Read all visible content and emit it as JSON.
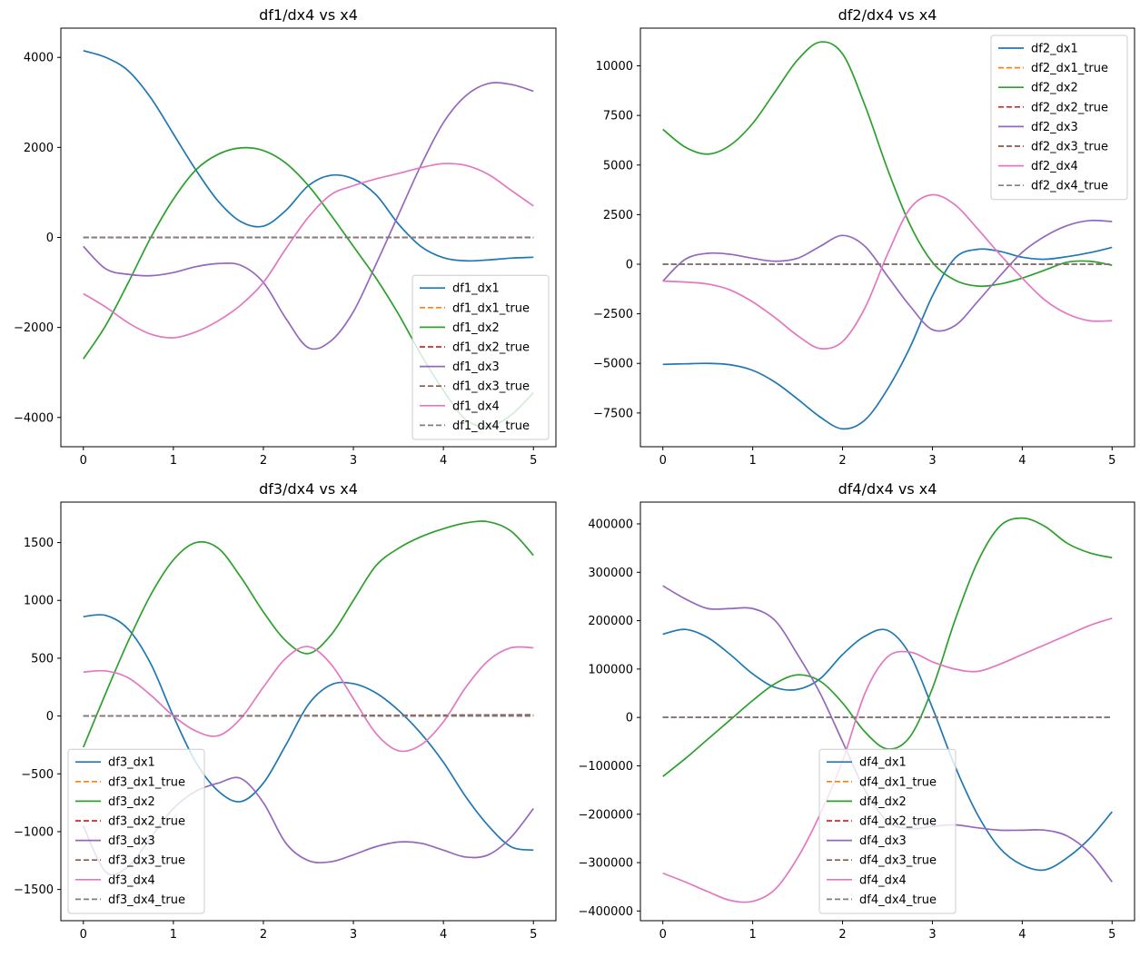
{
  "colors": {
    "c1": "#1f77b4",
    "c2": "#ff7f0e",
    "c3": "#2ca02c",
    "c4": "#d62728",
    "c5": "#9467bd",
    "c6": "#8c564b",
    "c7": "#e377c2",
    "c8": "#7f7f7f"
  },
  "chart_data": [
    {
      "type": "line",
      "title": "df1/dx4 vs x4",
      "xlim": [
        -0.25,
        5.25
      ],
      "ylim": [
        -4650,
        4650
      ],
      "xticks": [
        0,
        1,
        2,
        3,
        4,
        5
      ],
      "yticks": [
        -4000,
        -2000,
        0,
        2000,
        4000
      ],
      "legend_position": "lower right",
      "x": [
        0,
        0.25,
        0.5,
        0.75,
        1,
        1.25,
        1.5,
        1.75,
        2,
        2.25,
        2.5,
        2.75,
        3,
        3.25,
        3.5,
        3.75,
        4,
        4.25,
        4.5,
        4.75,
        5
      ],
      "series": [
        {
          "name": "df1_dx1",
          "color": "c1",
          "dash": false,
          "values": [
            4150,
            4000,
            3700,
            3100,
            2300,
            1500,
            800,
            350,
            250,
            600,
            1150,
            1380,
            1300,
            950,
            300,
            -200,
            -450,
            -520,
            -500,
            -460,
            -440
          ]
        },
        {
          "name": "df1_dx1_true",
          "color": "c2",
          "dash": true,
          "values": [
            0,
            0,
            0,
            0,
            0,
            0,
            0,
            0,
            0,
            0,
            0,
            0,
            0,
            0,
            0,
            0,
            0,
            0,
            0,
            0,
            0
          ]
        },
        {
          "name": "df1_dx2",
          "color": "c3",
          "dash": false,
          "values": [
            -2700,
            -1950,
            -1000,
            0,
            850,
            1500,
            1850,
            1990,
            1930,
            1650,
            1150,
            500,
            -200,
            -900,
            -1700,
            -2600,
            -3400,
            -4050,
            -4200,
            -3950,
            -3450
          ]
        },
        {
          "name": "df1_dx2_true",
          "color": "c4",
          "dash": true,
          "values": [
            0,
            0,
            0,
            0,
            0,
            0,
            0,
            0,
            0,
            0,
            0,
            0,
            0,
            0,
            0,
            0,
            0,
            0,
            0,
            0,
            0
          ]
        },
        {
          "name": "df1_dx3",
          "color": "c5",
          "dash": false,
          "values": [
            -200,
            -700,
            -820,
            -850,
            -780,
            -650,
            -580,
            -620,
            -1000,
            -1800,
            -2450,
            -2300,
            -1650,
            -600,
            500,
            1600,
            2550,
            3150,
            3420,
            3400,
            3250
          ]
        },
        {
          "name": "df1_dx3_true",
          "color": "c6",
          "dash": true,
          "values": [
            0,
            0,
            0,
            0,
            0,
            0,
            0,
            0,
            0,
            0,
            0,
            0,
            0,
            0,
            0,
            0,
            0,
            0,
            0,
            0,
            0
          ]
        },
        {
          "name": "df1_dx4",
          "color": "c7",
          "dash": false,
          "values": [
            -1250,
            -1550,
            -1900,
            -2150,
            -2230,
            -2100,
            -1850,
            -1500,
            -1000,
            -250,
            450,
            950,
            1150,
            1300,
            1420,
            1550,
            1640,
            1600,
            1400,
            1050,
            700
          ]
        },
        {
          "name": "df1_dx4_true",
          "color": "c8",
          "dash": true,
          "values": [
            0,
            0,
            0,
            0,
            0,
            0,
            0,
            0,
            0,
            0,
            0,
            0,
            0,
            0,
            0,
            0,
            0,
            0,
            0,
            0,
            0
          ]
        }
      ]
    },
    {
      "type": "line",
      "title": "df2/dx4 vs x4",
      "xlim": [
        -0.25,
        5.25
      ],
      "ylim": [
        -9200,
        11900
      ],
      "xticks": [
        0,
        1,
        2,
        3,
        4,
        5
      ],
      "yticks": [
        -7500,
        -5000,
        -2500,
        0,
        2500,
        5000,
        7500,
        10000
      ],
      "legend_position": "upper right",
      "x": [
        0,
        0.25,
        0.5,
        0.75,
        1,
        1.25,
        1.5,
        1.75,
        2,
        2.25,
        2.5,
        2.75,
        3,
        3.25,
        3.5,
        3.75,
        4,
        4.25,
        4.5,
        4.75,
        5
      ],
      "series": [
        {
          "name": "df2_dx1",
          "color": "c1",
          "dash": false,
          "values": [
            -5050,
            -5020,
            -5000,
            -5070,
            -5350,
            -5950,
            -6800,
            -7700,
            -8300,
            -7850,
            -6300,
            -4200,
            -1600,
            300,
            750,
            650,
            350,
            250,
            380,
            580,
            850
          ]
        },
        {
          "name": "df2_dx1_true",
          "color": "c2",
          "dash": true,
          "values": [
            0,
            0,
            0,
            0,
            0,
            0,
            0,
            0,
            0,
            0,
            0,
            0,
            0,
            0,
            0,
            0,
            0,
            0,
            0,
            0,
            0
          ]
        },
        {
          "name": "df2_dx2",
          "color": "c3",
          "dash": false,
          "values": [
            6800,
            5900,
            5550,
            6000,
            7100,
            8700,
            10300,
            11200,
            10600,
            8000,
            4800,
            2000,
            100,
            -800,
            -1100,
            -1000,
            -700,
            -300,
            100,
            150,
            -50
          ]
        },
        {
          "name": "df2_dx2_true",
          "color": "c4",
          "dash": true,
          "values": [
            0,
            0,
            0,
            0,
            0,
            0,
            0,
            0,
            0,
            0,
            0,
            0,
            0,
            0,
            0,
            0,
            0,
            0,
            0,
            0,
            0
          ]
        },
        {
          "name": "df2_dx3",
          "color": "c5",
          "dash": false,
          "values": [
            -850,
            250,
            550,
            500,
            300,
            150,
            300,
            900,
            1450,
            900,
            -600,
            -2100,
            -3300,
            -3100,
            -1900,
            -600,
            600,
            1400,
            1950,
            2200,
            2150
          ]
        },
        {
          "name": "df2_dx3_true",
          "color": "c6",
          "dash": true,
          "values": [
            0,
            0,
            0,
            0,
            0,
            0,
            0,
            0,
            0,
            0,
            0,
            0,
            0,
            0,
            0,
            0,
            0,
            0,
            0,
            0,
            0
          ]
        },
        {
          "name": "df2_dx4",
          "color": "c7",
          "dash": false,
          "values": [
            -850,
            -900,
            -1000,
            -1300,
            -1900,
            -2700,
            -3600,
            -4250,
            -3900,
            -2200,
            500,
            2800,
            3500,
            3000,
            1800,
            500,
            -700,
            -1800,
            -2500,
            -2850,
            -2850
          ]
        },
        {
          "name": "df2_dx4_true",
          "color": "c8",
          "dash": true,
          "values": [
            0,
            0,
            0,
            0,
            0,
            0,
            0,
            0,
            0,
            0,
            0,
            0,
            0,
            0,
            0,
            0,
            0,
            0,
            0,
            0,
            0
          ]
        }
      ]
    },
    {
      "type": "line",
      "title": "df3/dx4 vs x4",
      "xlim": [
        -0.25,
        5.25
      ],
      "ylim": [
        -1770,
        1850
      ],
      "xticks": [
        0,
        1,
        2,
        3,
        4,
        5
      ],
      "yticks": [
        -1500,
        -1000,
        -500,
        0,
        500,
        1000,
        1500
      ],
      "legend_position": "lower left",
      "x": [
        0,
        0.25,
        0.5,
        0.75,
        1,
        1.25,
        1.5,
        1.75,
        2,
        2.25,
        2.5,
        2.75,
        3,
        3.25,
        3.5,
        3.75,
        4,
        4.25,
        4.5,
        4.75,
        5
      ],
      "series": [
        {
          "name": "df3_dx1",
          "color": "c1",
          "dash": false,
          "values": [
            860,
            870,
            750,
            450,
            0,
            -400,
            -650,
            -740,
            -580,
            -250,
            100,
            270,
            280,
            200,
            50,
            -150,
            -400,
            -700,
            -950,
            -1130,
            -1160
          ]
        },
        {
          "name": "df3_dx1_true",
          "color": "c2",
          "dash": true,
          "values": [
            0,
            0,
            0,
            0,
            0,
            0,
            0,
            0,
            0,
            0,
            0,
            0,
            0,
            0,
            0,
            0,
            0,
            0,
            0,
            0,
            0
          ]
        },
        {
          "name": "df3_dx2",
          "color": "c3",
          "dash": false,
          "values": [
            -270,
            200,
            650,
            1050,
            1350,
            1500,
            1450,
            1200,
            900,
            650,
            540,
            700,
            1000,
            1300,
            1450,
            1550,
            1620,
            1670,
            1680,
            1600,
            1390
          ]
        },
        {
          "name": "df3_dx2_true",
          "color": "c4",
          "dash": true,
          "values": [
            0,
            0,
            0,
            1,
            1,
            2,
            2,
            3,
            3,
            4,
            4,
            5,
            5,
            6,
            6,
            7,
            7,
            8,
            8,
            9,
            9
          ]
        },
        {
          "name": "df3_dx3",
          "color": "c5",
          "dash": false,
          "values": [
            -950,
            -1350,
            -1300,
            -1050,
            -800,
            -650,
            -580,
            -540,
            -750,
            -1100,
            -1250,
            -1260,
            -1200,
            -1130,
            -1090,
            -1100,
            -1160,
            -1220,
            -1200,
            -1050,
            -800
          ]
        },
        {
          "name": "df3_dx3_true",
          "color": "c6",
          "dash": true,
          "values": [
            0,
            0,
            0,
            0,
            1,
            1,
            1,
            2,
            2,
            3,
            3,
            4,
            4,
            5,
            5,
            6,
            7,
            8,
            9,
            10,
            11
          ]
        },
        {
          "name": "df3_dx4",
          "color": "c7",
          "dash": false,
          "values": [
            380,
            390,
            330,
            180,
            0,
            -130,
            -170,
            -20,
            250,
            500,
            600,
            450,
            150,
            -150,
            -300,
            -250,
            -50,
            250,
            480,
            590,
            590
          ]
        },
        {
          "name": "df3_dx4_true",
          "color": "c8",
          "dash": true,
          "values": [
            0,
            0,
            0,
            0,
            0,
            0,
            0,
            0,
            0,
            0,
            0,
            0,
            0,
            0,
            0,
            0,
            0,
            0,
            0,
            0,
            0
          ]
        }
      ]
    },
    {
      "type": "line",
      "title": "df4/dx4 vs x4",
      "xlim": [
        -0.25,
        5.25
      ],
      "ylim": [
        -420000,
        445000
      ],
      "xticks": [
        0,
        1,
        2,
        3,
        4,
        5
      ],
      "yticks": [
        -400000,
        -300000,
        -200000,
        -100000,
        0,
        100000,
        200000,
        300000,
        400000
      ],
      "legend_position": "lower center",
      "x": [
        0,
        0.25,
        0.5,
        0.75,
        1,
        1.25,
        1.5,
        1.75,
        2,
        2.25,
        2.5,
        2.75,
        3,
        3.25,
        3.5,
        3.75,
        4,
        4.25,
        4.5,
        4.75,
        5
      ],
      "series": [
        {
          "name": "df4_dx1",
          "color": "c1",
          "dash": false,
          "values": [
            172000,
            182000,
            165000,
            130000,
            90000,
            62000,
            58000,
            80000,
            130000,
            168000,
            180000,
            130000,
            20000,
            -100000,
            -200000,
            -270000,
            -305000,
            -315000,
            -290000,
            -250000,
            -195000
          ]
        },
        {
          "name": "df4_dx1_true",
          "color": "c2",
          "dash": true,
          "values": [
            0,
            0,
            0,
            0,
            0,
            0,
            0,
            0,
            0,
            0,
            0,
            0,
            0,
            0,
            0,
            0,
            0,
            0,
            0,
            0,
            0
          ]
        },
        {
          "name": "df4_dx2",
          "color": "c3",
          "dash": false,
          "values": [
            -122000,
            -85000,
            -45000,
            -5000,
            35000,
            70000,
            88000,
            75000,
            30000,
            -30000,
            -65000,
            -40000,
            60000,
            200000,
            320000,
            395000,
            412000,
            395000,
            360000,
            340000,
            330000
          ]
        },
        {
          "name": "df4_dx2_true",
          "color": "c4",
          "dash": true,
          "values": [
            0,
            0,
            0,
            0,
            0,
            0,
            0,
            0,
            0,
            0,
            0,
            0,
            0,
            0,
            0,
            0,
            0,
            0,
            0,
            0,
            0
          ]
        },
        {
          "name": "df4_dx3",
          "color": "c5",
          "dash": false,
          "values": [
            272000,
            245000,
            225000,
            225000,
            225000,
            200000,
            130000,
            50000,
            -50000,
            -150000,
            -215000,
            -230000,
            -225000,
            -222000,
            -228000,
            -233000,
            -233000,
            -233000,
            -245000,
            -280000,
            -340000
          ]
        },
        {
          "name": "df4_dx3_true",
          "color": "c6",
          "dash": true,
          "values": [
            0,
            0,
            0,
            0,
            0,
            0,
            0,
            0,
            0,
            0,
            0,
            0,
            0,
            0,
            0,
            0,
            0,
            0,
            0,
            0,
            0
          ]
        },
        {
          "name": "df4_dx4",
          "color": "c7",
          "dash": false,
          "values": [
            -322000,
            -340000,
            -360000,
            -378000,
            -380000,
            -355000,
            -290000,
            -200000,
            -90000,
            50000,
            125000,
            135000,
            115000,
            100000,
            95000,
            110000,
            130000,
            150000,
            170000,
            190000,
            205000
          ]
        },
        {
          "name": "df4_dx4_true",
          "color": "c8",
          "dash": true,
          "values": [
            0,
            0,
            0,
            0,
            0,
            0,
            0,
            0,
            0,
            0,
            0,
            0,
            0,
            0,
            0,
            0,
            0,
            0,
            0,
            0,
            0
          ]
        }
      ]
    }
  ]
}
